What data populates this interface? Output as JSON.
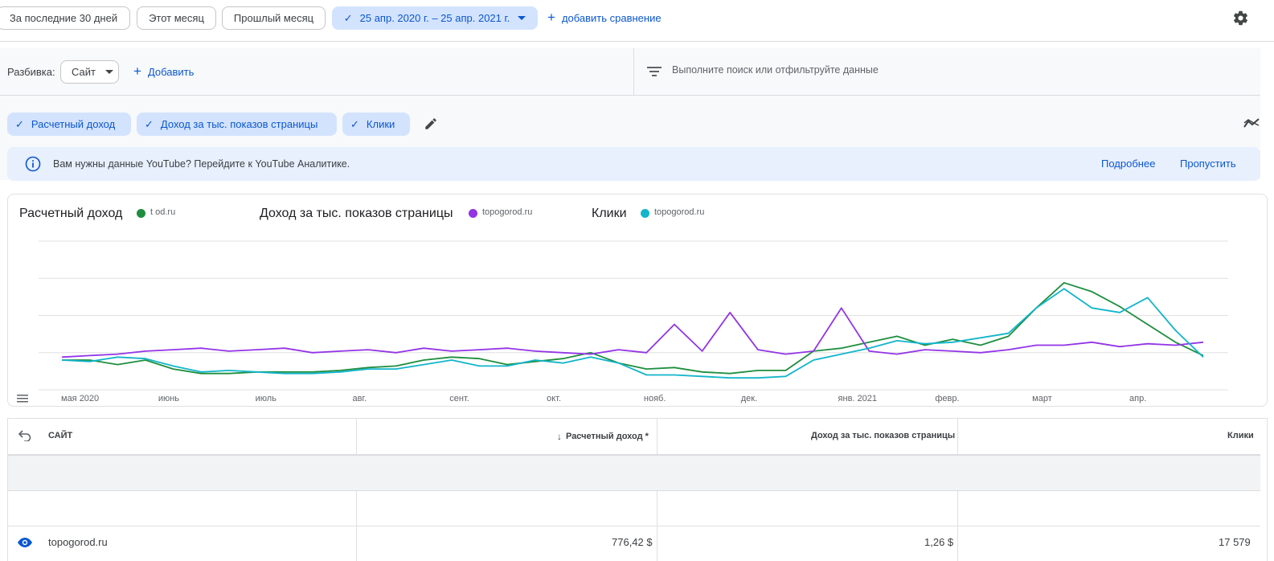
{
  "date_bar": {
    "presets": [
      "За последние 30 дней",
      "Этот месяц",
      "Прошлый месяц"
    ],
    "range": "25 апр. 2020 г. – 25 апр. 2021 г.",
    "add_comparison": "добавить сравнение",
    "settings_icon": "gear-icon"
  },
  "breakdown": {
    "label": "Разбивка:",
    "value": "Сайт",
    "add": "Добавить",
    "search_placeholder": "Выполните поиск или отфильтруйте данные"
  },
  "metrics": [
    "Расчетный доход",
    "Доход за тыс. показов страницы",
    "Клики"
  ],
  "info": {
    "text": "Вам нужны данные YouTube? Перейдите к YouTube Аналитике.",
    "more": "Подробнее",
    "skip": "Пропустить"
  },
  "chart_legend": [
    {
      "metric": "Расчетный доход",
      "site": "t          od.ru",
      "color": "#1e8e3e"
    },
    {
      "metric": "Доход за тыс. показов страницы",
      "site": "topogorod.ru",
      "color": "#9334e6"
    },
    {
      "metric": "Клики",
      "site": "topogorod.ru",
      "color": "#12b5cb"
    }
  ],
  "chart_data": {
    "type": "line",
    "x_ticks": [
      "мая 2020",
      "июнь",
      "июль",
      "авг.",
      "сент.",
      "окт.",
      "нояб.",
      "дек.",
      "янв. 2021",
      "февр.",
      "март",
      "апр."
    ],
    "grid": true,
    "ylim": [
      0,
      100
    ],
    "series": [
      {
        "name": "Расчетный доход",
        "color": "#1e8e3e",
        "values": [
          20,
          20,
          17,
          20,
          14,
          11,
          11,
          12,
          12,
          12,
          13,
          15,
          16,
          20,
          22,
          21,
          17,
          19,
          21,
          25,
          18,
          14,
          15,
          12,
          11,
          13,
          13,
          26,
          28,
          32,
          36,
          30,
          34,
          30,
          36,
          55,
          72,
          66,
          56,
          44,
          32,
          23
        ]
      },
      {
        "name": "Доход за тыс. показов страницы",
        "color": "#9334e6",
        "values": [
          22,
          23,
          24,
          26,
          27,
          28,
          26,
          27,
          28,
          25,
          26,
          27,
          25,
          28,
          26,
          27,
          28,
          26,
          25,
          24,
          27,
          25,
          44,
          26,
          52,
          27,
          24,
          26,
          55,
          26,
          24,
          27,
          26,
          25,
          27,
          30,
          30,
          32,
          29,
          31,
          30,
          32
        ]
      },
      {
        "name": "Клики",
        "color": "#12b5cb",
        "values": [
          20,
          19,
          22,
          21,
          16,
          12,
          13,
          12,
          11,
          11,
          12,
          14,
          14,
          17,
          20,
          16,
          16,
          20,
          18,
          22,
          18,
          10,
          10,
          9,
          8,
          8,
          9,
          20,
          24,
          28,
          33,
          31,
          32,
          35,
          38,
          55,
          68,
          55,
          52,
          62,
          40,
          22
        ]
      }
    ]
  },
  "table": {
    "headers": [
      "САЙТ",
      "Расчетный доход *",
      "Доход за тыс. показов страницы",
      "Клики"
    ],
    "row": {
      "site": "topogorod.ru",
      "revenue": "776,42 $",
      "rpm": "1,26 $",
      "clicks": "17 579"
    }
  }
}
